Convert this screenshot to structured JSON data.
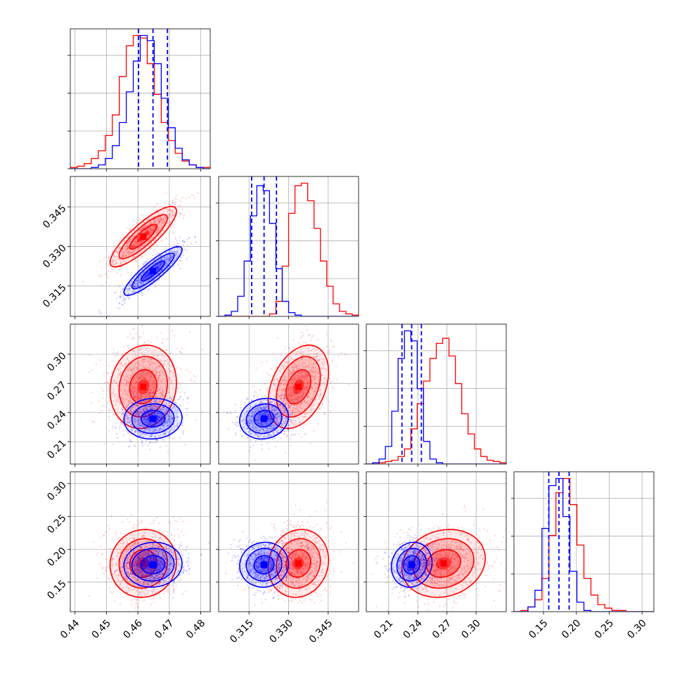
{
  "chart_data": {
    "type": "corner",
    "title": "",
    "series": [
      {
        "name": "",
        "color": "#ff0000"
      },
      {
        "name": "",
        "color": "#0000ff"
      }
    ],
    "grid": true,
    "parameters": [
      {
        "range": [
          0.4385,
          0.483
        ],
        "ticks": [
          0.44,
          0.45,
          0.46,
          0.47,
          0.48
        ],
        "tick_labels": [
          "0.44",
          "0.45",
          "0.46",
          "0.47",
          "0.48"
        ]
      },
      {
        "range": [
          0.3035,
          0.3565
        ],
        "ticks": [
          0.315,
          0.33,
          0.345
        ],
        "tick_labels": [
          "0.315",
          "0.330",
          "0.345"
        ]
      },
      {
        "range": [
          0.187,
          0.331
        ],
        "ticks": [
          0.21,
          0.24,
          0.27,
          0.3
        ],
        "tick_labels": [
          "0.21",
          "0.24",
          "0.27",
          "0.30"
        ]
      },
      {
        "range": [
          0.105,
          0.318
        ],
        "ticks": [
          0.15,
          0.2,
          0.25,
          0.3
        ],
        "tick_labels": [
          "0.15",
          "0.20",
          "0.25",
          "0.30"
        ]
      }
    ],
    "diagonal_histograms": [
      {
        "edges": [
          0.4385,
          0.483
        ],
        "red_counts": [
          1,
          2,
          4,
          8,
          14,
          26,
          42,
          72,
          96,
          104,
          102,
          82,
          58,
          36,
          22,
          12,
          6,
          3,
          1,
          1
        ],
        "blue_counts": [
          0,
          0,
          0,
          1,
          3,
          8,
          18,
          36,
          60,
          84,
          104,
          100,
          82,
          55,
          32,
          16,
          7,
          3,
          1,
          0
        ],
        "quantiles": [
          0.4602,
          0.4648,
          0.4694
        ]
      },
      {
        "edges": [
          0.3035,
          0.3565
        ],
        "red_counts": [
          0,
          0,
          0,
          0,
          0,
          0,
          0,
          0,
          2,
          12,
          40,
          82,
          104,
          106,
          92,
          70,
          44,
          24,
          10,
          4,
          2,
          1
        ],
        "blue_counts": [
          0,
          1,
          4,
          16,
          44,
          80,
          104,
          100,
          74,
          38,
          12,
          3,
          1,
          0,
          0,
          0,
          0,
          0,
          0,
          0,
          0,
          0
        ],
        "quantiles": [
          0.316,
          0.3207,
          0.3254
        ]
      },
      {
        "edges": [
          0.187,
          0.331
        ],
        "red_counts": [
          0,
          0,
          1,
          2,
          3,
          6,
          12,
          28,
          48,
          66,
          84,
          96,
          100,
          86,
          64,
          40,
          24,
          12,
          6,
          3,
          2,
          1
        ],
        "blue_counts": [
          0,
          1,
          4,
          14,
          42,
          84,
          106,
          98,
          60,
          18,
          4,
          1,
          0,
          0,
          0,
          0,
          0,
          0,
          0,
          0,
          0,
          0
        ],
        "quantiles": [
          0.2237,
          0.2337,
          0.2437
        ]
      },
      {
        "edges": [
          0.105,
          0.318
        ],
        "red_counts": [
          0,
          1,
          4,
          10,
          28,
          64,
          100,
          112,
          90,
          56,
          28,
          14,
          6,
          3,
          1,
          1,
          0,
          0,
          0,
          0
        ],
        "blue_counts": [
          0,
          0,
          4,
          18,
          70,
          106,
          112,
          80,
          34,
          8,
          1,
          0,
          0,
          0,
          0,
          0,
          0,
          0,
          0,
          0
        ],
        "quantiles": [
          0.158,
          0.1735,
          0.189
        ]
      }
    ],
    "pair_stats": {
      "red": {
        "mean": [
          0.4617,
          0.3337,
          0.2665,
          0.1785
        ],
        "sd": [
          0.0048,
          0.0052,
          0.0195,
          0.0235
        ]
      },
      "blue": {
        "mean": [
          0.4648,
          0.3207,
          0.2337,
          0.1765
        ],
        "sd": [
          0.0042,
          0.0042,
          0.0095,
          0.0155
        ]
      },
      "correlations_red": {
        "1-0": 0.85,
        "2-0": 0.1,
        "2-1": 0.35,
        "3-0": 0.05,
        "3-1": 0.1,
        "3-2": 0.15
      },
      "correlations_blue": {
        "1-0": 0.88,
        "2-0": 0.05,
        "2-1": 0.1,
        "3-0": 0.05,
        "3-1": 0.05,
        "3-2": 0.1
      }
    }
  }
}
